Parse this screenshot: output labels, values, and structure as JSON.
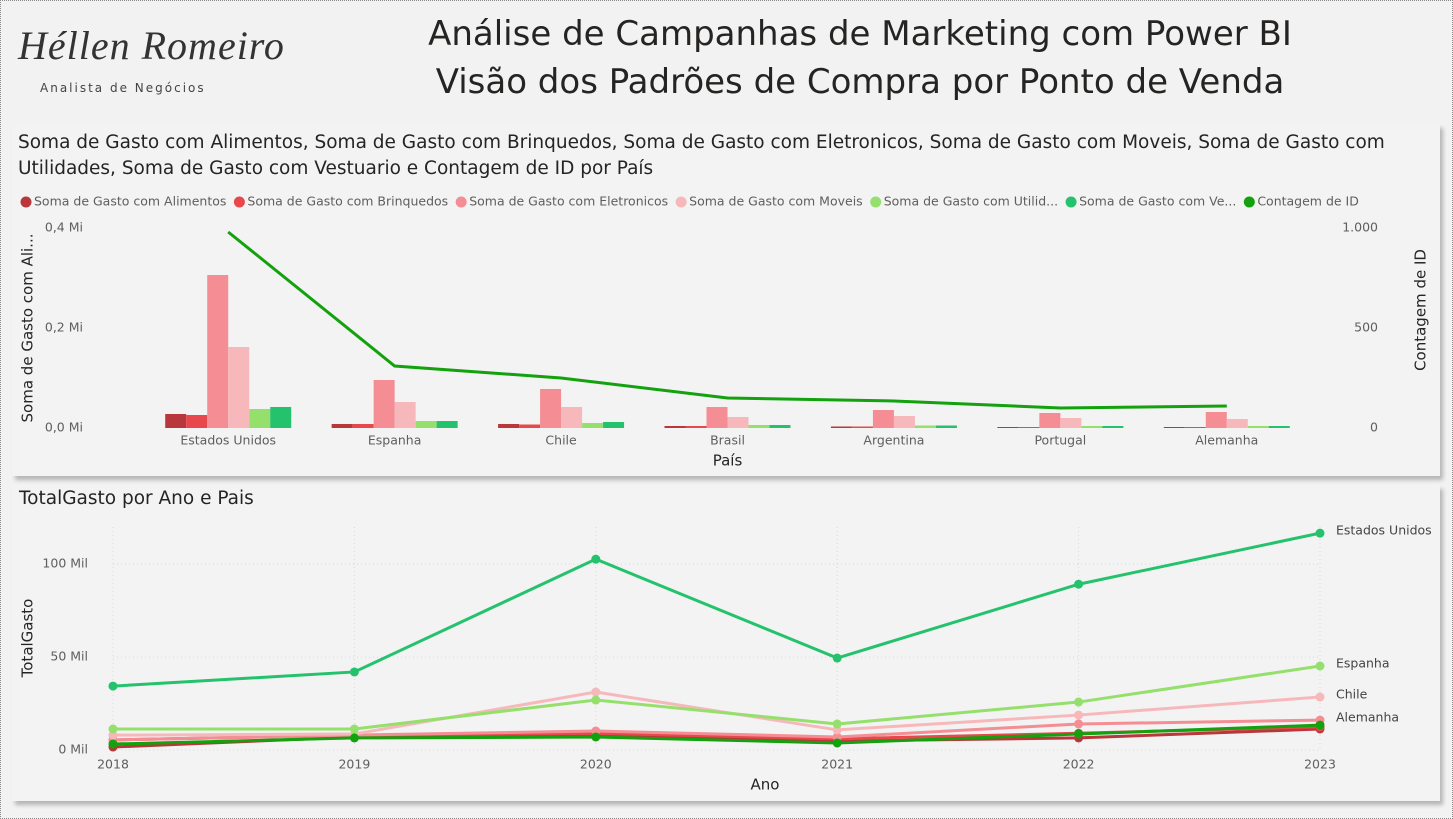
{
  "header": {
    "logo": "Héllen Romeiro",
    "logo_subtitle": "Analista de Negócios",
    "title_lines": [
      "Análise de Campanhas de Marketing com Power BI",
      "Visão dos Padrões de Compra por Ponto de Venda"
    ]
  },
  "chart_data": [
    {
      "type": "bar_line",
      "title": "Soma de Gasto com Alimentos, Soma de Gasto com Brinquedos, Soma de Gasto com Eletronicos, Soma de Gasto com Moveis, Soma de Gasto com Utilidades, Soma de Gasto com Vestuario e Contagem de ID por País",
      "x_label": "País",
      "y_label": "Soma de Gasto com Ali...",
      "y2_label": "Contagem de ID",
      "categories": [
        "Estados Unidos",
        "Espanha",
        "Chile",
        "Brasil",
        "Argentina",
        "Portugal",
        "Alemanha"
      ],
      "series": [
        {
          "name": "Soma de Gasto com Alimentos",
          "color": "#b7373a",
          "values": [
            28000,
            8000,
            8000,
            4000,
            3000,
            2000,
            2000
          ]
        },
        {
          "name": "Soma de Gasto com Brinquedos",
          "color": "#e8474c",
          "values": [
            26000,
            8000,
            7000,
            4000,
            3000,
            2000,
            2000
          ]
        },
        {
          "name": "Soma de Gasto com Eletronicos",
          "color": "#f48d94",
          "values": [
            306000,
            96000,
            78000,
            42000,
            36000,
            30000,
            32000
          ]
        },
        {
          "name": "Soma de Gasto com Moveis",
          "color": "#f7b8bb",
          "values": [
            162000,
            52000,
            42000,
            22000,
            24000,
            20000,
            18000
          ]
        },
        {
          "name": "Soma de Gasto com Utilid...",
          "color": "#95e06c",
          "values": [
            38000,
            14000,
            10000,
            6000,
            5000,
            4000,
            4000
          ]
        },
        {
          "name": "Soma de Gasto com Ve...",
          "color": "#25c26d",
          "values": [
            42000,
            14000,
            12000,
            6000,
            5000,
            4000,
            4000
          ]
        },
        {
          "name": "Contagem de ID",
          "color": "#13a10e",
          "axis": "y2",
          "values": [
            980,
            310,
            250,
            150,
            135,
            100,
            110
          ]
        }
      ],
      "ylim": [
        0,
        400000
      ],
      "yticks": [
        {
          "value": 0,
          "label": "0,0 Mi"
        },
        {
          "value": 200000,
          "label": "0,2 Mi"
        },
        {
          "value": 400000,
          "label": "0,4 Mi"
        }
      ],
      "y2lim": [
        0,
        1000
      ],
      "y2ticks": [
        0,
        500,
        {
          "value": 1000,
          "label": "1.000"
        }
      ],
      "legend": "top-left"
    },
    {
      "type": "line",
      "title": "TotalGasto por Ano e Pais",
      "x_label": "Ano",
      "y_label": "TotalGasto",
      "x": [
        2018,
        2019,
        2020,
        2021,
        2022,
        2023
      ],
      "xlim": [
        2018,
        2023
      ],
      "xticks": [
        2018,
        2019,
        2020,
        2021,
        2022,
        2023
      ],
      "ylim": [
        0,
        120000
      ],
      "yticks": [
        {
          "value": 0,
          "label": "0 Mil"
        },
        {
          "value": 50000,
          "label": "50 Mil"
        },
        {
          "value": 100000,
          "label": "100 Mil"
        }
      ],
      "grid": true,
      "legend": "line-end",
      "series": [
        {
          "color": "#b7373a",
          "values": [
            1600,
            7000,
            7500,
            4800,
            6500,
            11300
          ]
        },
        {
          "color": "#e8474c",
          "values": [
            5400,
            8000,
            9000,
            6000,
            9000,
            12500
          ]
        },
        {
          "name": "Alemanha",
          "color": "#f48d94",
          "values": [
            5400,
            8000,
            10200,
            7000,
            14000,
            16100
          ]
        },
        {
          "name": "Chile",
          "color": "#f7b8bb",
          "values": [
            8000,
            8600,
            31200,
            10800,
            18800,
            28500
          ]
        },
        {
          "name": "Espanha",
          "color": "#95e06c",
          "values": [
            11300,
            11300,
            26900,
            14000,
            25800,
            45200
          ]
        },
        {
          "color": "#13a10e",
          "values": [
            3200,
            6500,
            7000,
            3800,
            8600,
            13400
          ]
        },
        {
          "name": "Estados Unidos",
          "color": "#25c26d",
          "values": [
            34400,
            42000,
            102700,
            49500,
            89200,
            116700
          ]
        }
      ]
    }
  ]
}
